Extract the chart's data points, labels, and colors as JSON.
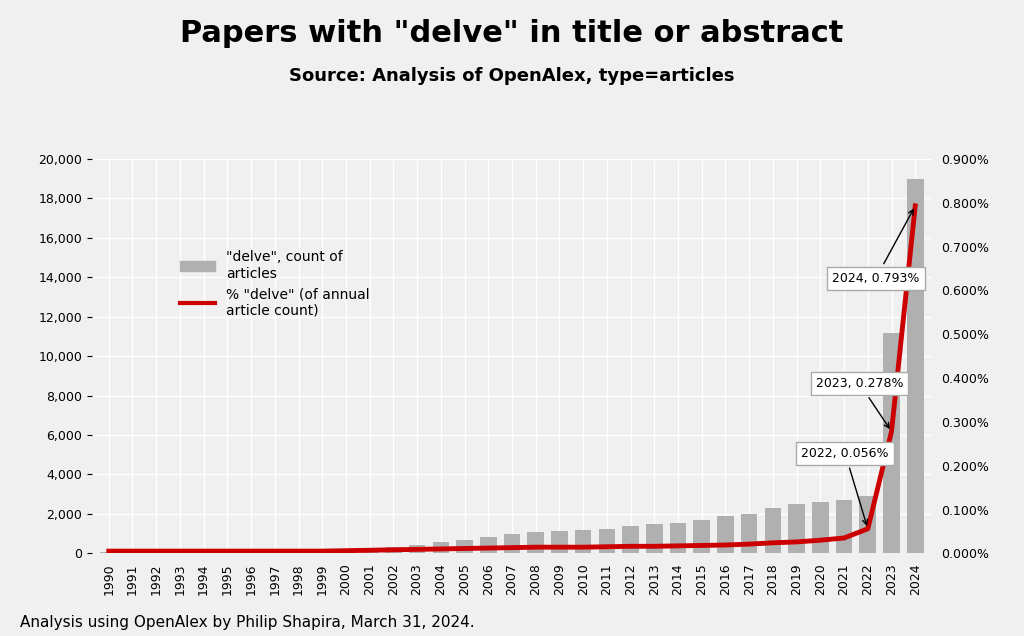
{
  "title": "Papers with \"delve\" in title or abstract",
  "subtitle": "Source: Analysis of OpenAlex, type=articles",
  "footer": "Analysis using OpenAlex by Philip Shapira, March 31, 2024.",
  "years": [
    1990,
    1991,
    1992,
    1993,
    1994,
    1995,
    1996,
    1997,
    1998,
    1999,
    2000,
    2001,
    2002,
    2003,
    2004,
    2005,
    2006,
    2007,
    2008,
    2009,
    2010,
    2011,
    2012,
    2013,
    2014,
    2015,
    2016,
    2017,
    2018,
    2019,
    2020,
    2021,
    2022,
    2023,
    2024
  ],
  "counts": [
    50,
    60,
    70,
    80,
    90,
    100,
    120,
    140,
    160,
    180,
    220,
    280,
    340,
    420,
    560,
    700,
    850,
    1000,
    1100,
    1150,
    1200,
    1250,
    1400,
    1500,
    1550,
    1700,
    1900,
    2000,
    2300,
    2500,
    2600,
    2700,
    2900,
    11200,
    19000
  ],
  "pct": [
    0.005,
    0.005,
    0.005,
    0.005,
    0.005,
    0.005,
    0.005,
    0.005,
    0.005,
    0.005,
    0.006,
    0.007,
    0.008,
    0.009,
    0.01,
    0.011,
    0.012,
    0.013,
    0.014,
    0.014,
    0.014,
    0.015,
    0.016,
    0.016,
    0.017,
    0.018,
    0.019,
    0.021,
    0.024,
    0.026,
    0.03,
    0.035,
    0.056,
    0.278,
    0.793
  ],
  "bar_color": "#b0b0b0",
  "line_color": "#cc0000",
  "annotation_2022": "2022, 0.056%",
  "annotation_2023": "2023, 0.278%",
  "annotation_2024": "2024, 0.793%",
  "bar_legend": "\"delve\", count of\narticles",
  "line_legend": "% \"delve\" (of annual\narticle count)",
  "ylim_left": [
    0,
    20000
  ],
  "ylim_right": [
    0,
    0.9
  ],
  "yticks_left": [
    0,
    2000,
    4000,
    6000,
    8000,
    10000,
    12000,
    14000,
    16000,
    18000,
    20000
  ],
  "yticks_right": [
    0.0,
    0.1,
    0.2,
    0.3,
    0.4,
    0.5,
    0.6,
    0.7,
    0.8,
    0.9
  ],
  "background_color": "#f0f0f0",
  "title_fontsize": 22,
  "subtitle_fontsize": 13,
  "footer_fontsize": 11
}
